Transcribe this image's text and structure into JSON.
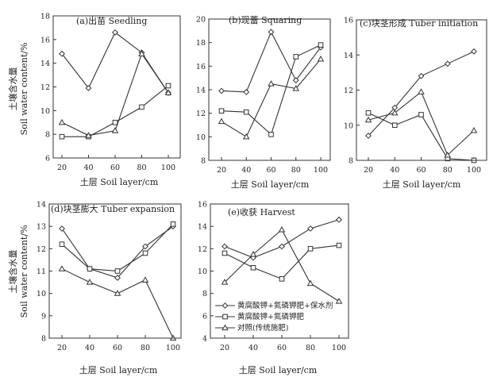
{
  "figure": {
    "ylabel_cn": "土壤含水量",
    "ylabel_en": "Soil water content/%",
    "xlabel": "土层 Soil layer/cm",
    "legend": [
      {
        "label": "黄腐酸钾+氮磷钾肥+保水剂",
        "marker": "diamond"
      },
      {
        "label": "黄腐酸钾+氮磷钾肥",
        "marker": "square"
      },
      {
        "label": "对照(传统施肥)",
        "marker": "triangle"
      }
    ]
  },
  "chart_data": [
    {
      "type": "line",
      "title": "(a)出苗 Seedling",
      "xlabel": "土层 Soil layer/cm",
      "ylabel": "土壤含水量 Soil water content/%",
      "x": [
        20,
        40,
        60,
        80,
        100
      ],
      "xticks": [
        20,
        40,
        60,
        80,
        100
      ],
      "ylim": [
        6,
        18
      ],
      "yticks": [
        6,
        8,
        10,
        12,
        14,
        16,
        18
      ],
      "series": [
        {
          "name": "黄腐酸钾+氮磷钾肥+保水剂",
          "marker": "diamond",
          "values": [
            14.8,
            11.9,
            16.6,
            14.9,
            11.5
          ]
        },
        {
          "name": "黄腐酸钾+氮磷钾肥",
          "marker": "square",
          "values": [
            7.8,
            7.8,
            9.0,
            10.3,
            12.1
          ]
        },
        {
          "name": "对照(传统施肥)",
          "marker": "triangle",
          "values": [
            9.0,
            7.9,
            8.3,
            14.8,
            11.5
          ]
        }
      ]
    },
    {
      "type": "line",
      "title": "(b)现蕾 Squaring",
      "xlabel": "土层 Soil layer/cm",
      "x": [
        20,
        40,
        60,
        80,
        100
      ],
      "xticks": [
        20,
        40,
        60,
        80,
        100
      ],
      "ylim": [
        8,
        20
      ],
      "yticks": [
        8,
        10,
        12,
        14,
        16,
        18,
        20
      ],
      "series": [
        {
          "name": "黄腐酸钾+氮磷钾肥+保水剂",
          "marker": "diamond",
          "values": [
            13.9,
            13.8,
            18.9,
            14.8,
            17.6
          ]
        },
        {
          "name": "黄腐酸钾+氮磷钾肥",
          "marker": "square",
          "values": [
            12.2,
            12.1,
            10.2,
            16.8,
            17.8
          ]
        },
        {
          "name": "对照(传统施肥)",
          "marker": "triangle",
          "values": [
            11.3,
            10.0,
            14.5,
            14.1,
            16.6
          ]
        }
      ]
    },
    {
      "type": "line",
      "title": "(c)块茎形成 Tuber initiation",
      "xlabel": "土层 Soil layer/cm",
      "x": [
        20,
        40,
        60,
        80,
        100
      ],
      "xticks": [
        20,
        40,
        60,
        80,
        100
      ],
      "ylim": [
        8,
        16
      ],
      "yticks": [
        8,
        10,
        12,
        14,
        16
      ],
      "series": [
        {
          "name": "黄腐酸钾+氮磷钾肥+保水剂",
          "marker": "diamond",
          "values": [
            9.4,
            11.0,
            12.8,
            13.5,
            14.2
          ]
        },
        {
          "name": "黄腐酸钾+氮磷钾肥",
          "marker": "square",
          "values": [
            10.7,
            10.0,
            10.6,
            8.1,
            8.0
          ]
        },
        {
          "name": "对照(传统施肥)",
          "marker": "triangle",
          "values": [
            10.3,
            10.7,
            11.9,
            8.3,
            9.7
          ]
        }
      ]
    },
    {
      "type": "line",
      "title": "(d)块茎膨大 Tuber expansion",
      "xlabel": "土层 Soil layer/cm",
      "ylabel": "土壤含水量 Soil water content/%",
      "x": [
        20,
        40,
        60,
        80,
        100
      ],
      "xticks": [
        20,
        40,
        60,
        80,
        100
      ],
      "ylim": [
        8,
        14
      ],
      "yticks": [
        8,
        9,
        10,
        11,
        12,
        13,
        14
      ],
      "series": [
        {
          "name": "黄腐酸钾+氮磷钾肥+保水剂",
          "marker": "diamond",
          "values": [
            12.9,
            11.1,
            10.7,
            12.1,
            13.0
          ]
        },
        {
          "name": "黄腐酸钾+氮磷钾肥",
          "marker": "square",
          "values": [
            12.2,
            11.1,
            11.0,
            11.8,
            13.1
          ]
        },
        {
          "name": "对照(传统施肥)",
          "marker": "triangle",
          "values": [
            11.1,
            10.5,
            10.0,
            10.6,
            8.0
          ]
        }
      ]
    },
    {
      "type": "line",
      "title": "(e)收获 Harvest",
      "xlabel": "土层 Soil layer/cm",
      "x": [
        20,
        40,
        60,
        80,
        100
      ],
      "xticks": [
        20,
        40,
        60,
        80,
        100
      ],
      "ylim": [
        4,
        16
      ],
      "yticks": [
        4,
        6,
        8,
        10,
        12,
        14,
        16
      ],
      "legend_position": "bottom-left",
      "series": [
        {
          "name": "黄腐酸钾+氮磷钾肥+保水剂",
          "marker": "diamond",
          "values": [
            12.2,
            11.2,
            12.2,
            13.8,
            14.6
          ]
        },
        {
          "name": "黄腐酸钾+氮磷钾肥",
          "marker": "square",
          "values": [
            11.6,
            10.3,
            9.3,
            12.0,
            12.3
          ]
        },
        {
          "name": "对照(传统施肥)",
          "marker": "triangle",
          "values": [
            9.0,
            11.5,
            13.7,
            8.9,
            7.3
          ]
        }
      ]
    }
  ]
}
